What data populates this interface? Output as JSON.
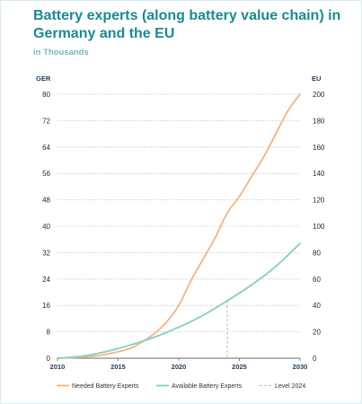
{
  "header": {
    "title": "Battery experts (along battery value chain) in Germany and the EU",
    "subtitle": "in Thousands"
  },
  "colors": {
    "needed": "#f5b37f",
    "available": "#7fd2c0",
    "reference": "#b9b9b9",
    "title": "#1a8a92",
    "subtitle": "#79b4bb"
  },
  "chart_data": {
    "type": "line",
    "y_left_label": "GER",
    "y_right_label": "EU",
    "y_left_ticks": [
      "0",
      "8",
      "16",
      "24",
      "32",
      "40",
      "48",
      "56",
      "64",
      "72",
      "80"
    ],
    "y_right_ticks": [
      "0",
      "20",
      "40",
      "60",
      "80",
      "100",
      "120",
      "140",
      "160",
      "180",
      "200"
    ],
    "x_ticks": [
      "2010",
      "2015",
      "2020",
      "2025",
      "2030"
    ],
    "y_left_range": [
      0,
      80
    ],
    "y_right_range": [
      0,
      200
    ],
    "x_range": [
      2010,
      2030
    ],
    "series": [
      {
        "name": "Needed Battery Experts",
        "axis": "GER",
        "x": [
          2010,
          2012,
          2014,
          2016,
          2017,
          2018,
          2019,
          2020,
          2021,
          2022,
          2023,
          2024,
          2025,
          2026,
          2027,
          2028,
          2029,
          2030
        ],
        "y": [
          0,
          0.3,
          1.2,
          3,
          5,
          7.5,
          11,
          16,
          23.5,
          30,
          36.5,
          44,
          49,
          55,
          61,
          68,
          75,
          80
        ]
      },
      {
        "name": "Available Battery Experts",
        "axis": "GER",
        "x": [
          2010,
          2012,
          2014,
          2016,
          2018,
          2020,
          2022,
          2024,
          2026,
          2028,
          2030
        ],
        "y": [
          0,
          0.6,
          2,
          4,
          6.4,
          9.4,
          13,
          17.4,
          22.2,
          27.8,
          34.8
        ]
      }
    ],
    "reference_line": {
      "name": "Level 2024",
      "x": 2024,
      "y": 17.4
    },
    "grid": "horizontal dotted",
    "legend_position": "bottom"
  }
}
